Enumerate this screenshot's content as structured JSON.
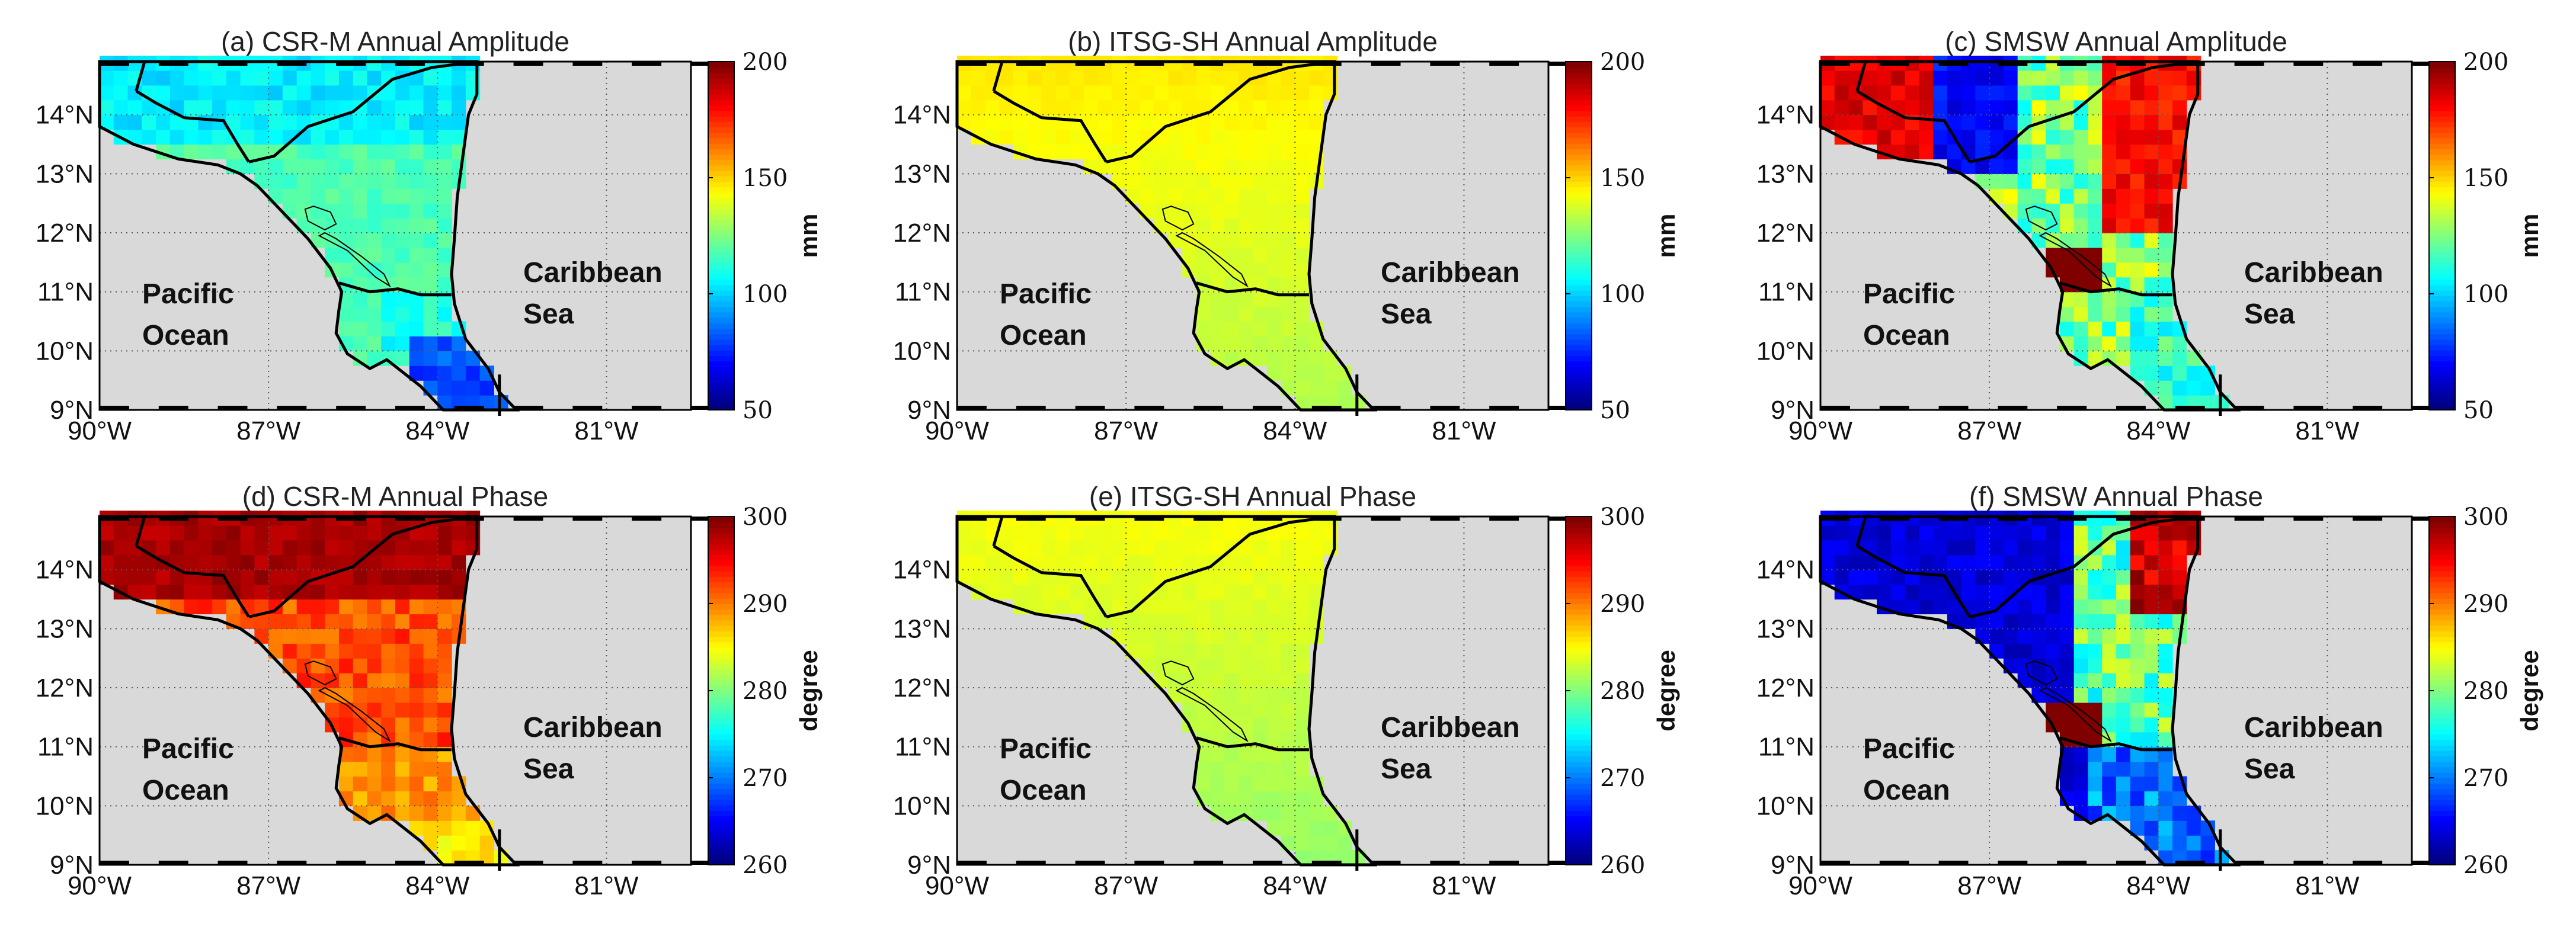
{
  "figure": {
    "colormap": "jet",
    "ocean_color": "#d9d9d9",
    "coastline_color": "#000000",
    "grid_style": "dotted"
  },
  "panels": [
    {
      "title": "(a) CSR-M Annual Amplitude",
      "dataset": "CSR-M",
      "field": "amplitude",
      "colorbar": {
        "min": 50,
        "max": 200,
        "ticks": [
          "200",
          "150",
          "100",
          "50"
        ],
        "unit": "mm"
      },
      "annotations": [
        "Pacific",
        "Ocean",
        "Caribbean",
        "Sea"
      ]
    },
    {
      "title": "(b) ITSG-SH Annual Amplitude",
      "dataset": "ITSG-SH",
      "field": "amplitude",
      "colorbar": {
        "min": 50,
        "max": 200,
        "ticks": [
          "200",
          "150",
          "100",
          "50"
        ],
        "unit": "mm"
      },
      "annotations": [
        "Pacific",
        "Ocean",
        "Caribbean",
        "Sea"
      ]
    },
    {
      "title": "(c) SMSW Annual Amplitude",
      "dataset": "SMSW",
      "field": "amplitude",
      "colorbar": {
        "min": 50,
        "max": 200,
        "ticks": [
          "200",
          "150",
          "100",
          "50"
        ],
        "unit": "mm"
      },
      "annotations": [
        "Pacific",
        "Ocean",
        "Caribbean",
        "Sea"
      ]
    },
    {
      "title": "(d) CSR-M Annual Phase",
      "dataset": "CSR-M",
      "field": "phase",
      "colorbar": {
        "min": 260,
        "max": 300,
        "ticks": [
          "300",
          "290",
          "280",
          "270",
          "260"
        ],
        "unit": "degree"
      },
      "annotations": [
        "Pacific",
        "Ocean",
        "Caribbean",
        "Sea"
      ]
    },
    {
      "title": "(e) ITSG-SH Annual Phase",
      "dataset": "ITSG-SH",
      "field": "phase",
      "colorbar": {
        "min": 260,
        "max": 300,
        "ticks": [
          "300",
          "290",
          "280",
          "270",
          "260"
        ],
        "unit": "degree"
      },
      "annotations": [
        "Pacific",
        "Ocean",
        "Caribbean",
        "Sea"
      ]
    },
    {
      "title": "(f) SMSW Annual Phase",
      "dataset": "SMSW",
      "field": "phase",
      "colorbar": {
        "min": 260,
        "max": 300,
        "ticks": [
          "300",
          "290",
          "280",
          "270",
          "260"
        ],
        "unit": "degree"
      },
      "annotations": [
        "Pacific",
        "Ocean",
        "Caribbean",
        "Sea"
      ]
    }
  ],
  "axes": {
    "lon_ticks": [
      "90°W",
      "87°W",
      "84°W",
      "81°W"
    ],
    "lat_ticks": [
      "14°N",
      "13°N",
      "12°N",
      "11°N",
      "10°N",
      "9°N"
    ],
    "lon_range": [
      -90,
      -79.5
    ],
    "lat_range": [
      9,
      14.9
    ]
  }
}
